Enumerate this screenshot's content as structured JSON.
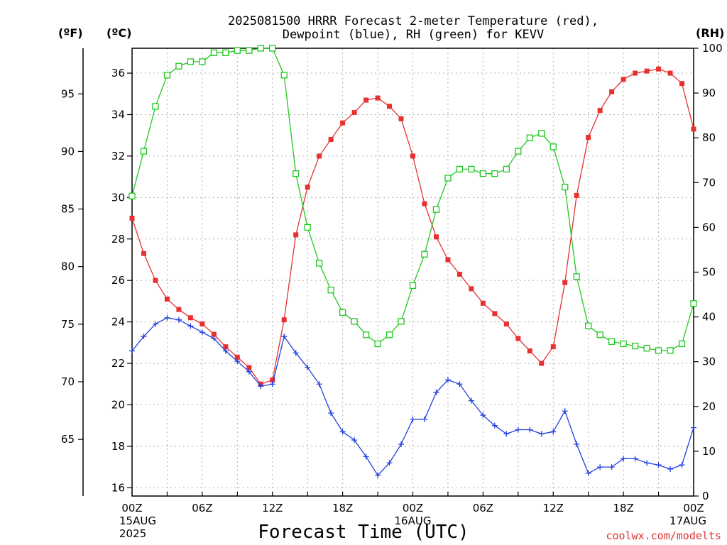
{
  "chart_data": {
    "type": "line",
    "title_line1": "2025081500 HRRR Forecast 2-meter Temperature (red),",
    "title_line2": "Dewpoint (blue), RH (green) for KEVV",
    "xlabel": "Forecast Time (UTC)",
    "credit": "coolwx.com/modelts",
    "unit_labels": {
      "fahrenheit": "(ºF)",
      "celsius": "(ºC)",
      "rh": "(RH)"
    },
    "x_ticks": [
      {
        "h": 0,
        "label": "00Z",
        "sub": [
          "15AUG",
          "2025"
        ]
      },
      {
        "h": 6,
        "label": "06Z",
        "sub": []
      },
      {
        "h": 12,
        "label": "12Z",
        "sub": []
      },
      {
        "h": 18,
        "label": "18Z",
        "sub": []
      },
      {
        "h": 24,
        "label": "00Z",
        "sub": [
          "16AUG"
        ]
      },
      {
        "h": 30,
        "label": "06Z",
        "sub": []
      },
      {
        "h": 36,
        "label": "12Z",
        "sub": []
      },
      {
        "h": 42,
        "label": "18Z",
        "sub": []
      },
      {
        "h": 48,
        "label": "00Z",
        "sub": [
          "17AUG"
        ]
      }
    ],
    "xlim": [
      0,
      48
    ],
    "celsius_ticks": [
      16,
      18,
      20,
      22,
      24,
      26,
      28,
      30,
      32,
      34,
      36
    ],
    "celsius_lim": [
      15.6,
      37.2
    ],
    "fahrenheit_ticks": [
      65,
      70,
      75,
      80,
      85,
      90,
      95
    ],
    "rh_ticks": [
      0,
      10,
      20,
      30,
      40,
      50,
      60,
      70,
      80,
      90,
      100
    ],
    "rh_lim": [
      0,
      100
    ],
    "grid": true,
    "series": [
      {
        "name": "Temperature",
        "color": "#e83030",
        "marker": "filled-square",
        "axis": "celsius",
        "values": [
          29.0,
          27.3,
          26.0,
          25.1,
          24.6,
          24.2,
          23.9,
          23.4,
          22.8,
          22.3,
          21.8,
          21.0,
          21.2,
          24.1,
          28.2,
          30.5,
          32.0,
          32.8,
          33.6,
          34.1,
          34.7,
          34.8,
          34.4,
          33.8,
          32.0,
          29.7,
          28.1,
          27.0,
          26.3,
          25.6,
          24.9,
          24.4,
          23.9,
          23.2,
          22.6,
          22.0,
          22.8,
          25.9,
          30.1,
          32.9,
          34.2,
          35.1,
          35.7,
          36.0,
          36.1,
          36.2,
          36.0,
          35.5,
          33.3
        ]
      },
      {
        "name": "Dewpoint",
        "color": "#2040e0",
        "marker": "plus",
        "axis": "celsius",
        "values": [
          22.6,
          23.3,
          23.9,
          24.2,
          24.1,
          23.8,
          23.5,
          23.2,
          22.6,
          22.1,
          21.6,
          20.9,
          21.0,
          23.3,
          22.5,
          21.8,
          21.0,
          19.6,
          18.7,
          18.3,
          17.5,
          16.6,
          17.2,
          18.1,
          19.3,
          19.3,
          20.6,
          21.2,
          21.0,
          20.2,
          19.5,
          19.0,
          18.6,
          18.8,
          18.8,
          18.6,
          18.7,
          19.7,
          18.1,
          16.7,
          17.0,
          17.0,
          17.4,
          17.4,
          17.2,
          17.1,
          16.9,
          17.1,
          18.9
        ]
      },
      {
        "name": "RH",
        "color": "#20c820",
        "marker": "open-square",
        "axis": "rh",
        "values": [
          67,
          77,
          87,
          94,
          96,
          97,
          97,
          99,
          99,
          99.5,
          99.5,
          100,
          100,
          94,
          72,
          60,
          52,
          46,
          41,
          39,
          36,
          34,
          36,
          39,
          47,
          54,
          64,
          71,
          73,
          73,
          72,
          72,
          73,
          77,
          80,
          81,
          78,
          69,
          49,
          38,
          36,
          34.5,
          34,
          33.5,
          33,
          32.5,
          32.5,
          34,
          43
        ]
      }
    ]
  }
}
